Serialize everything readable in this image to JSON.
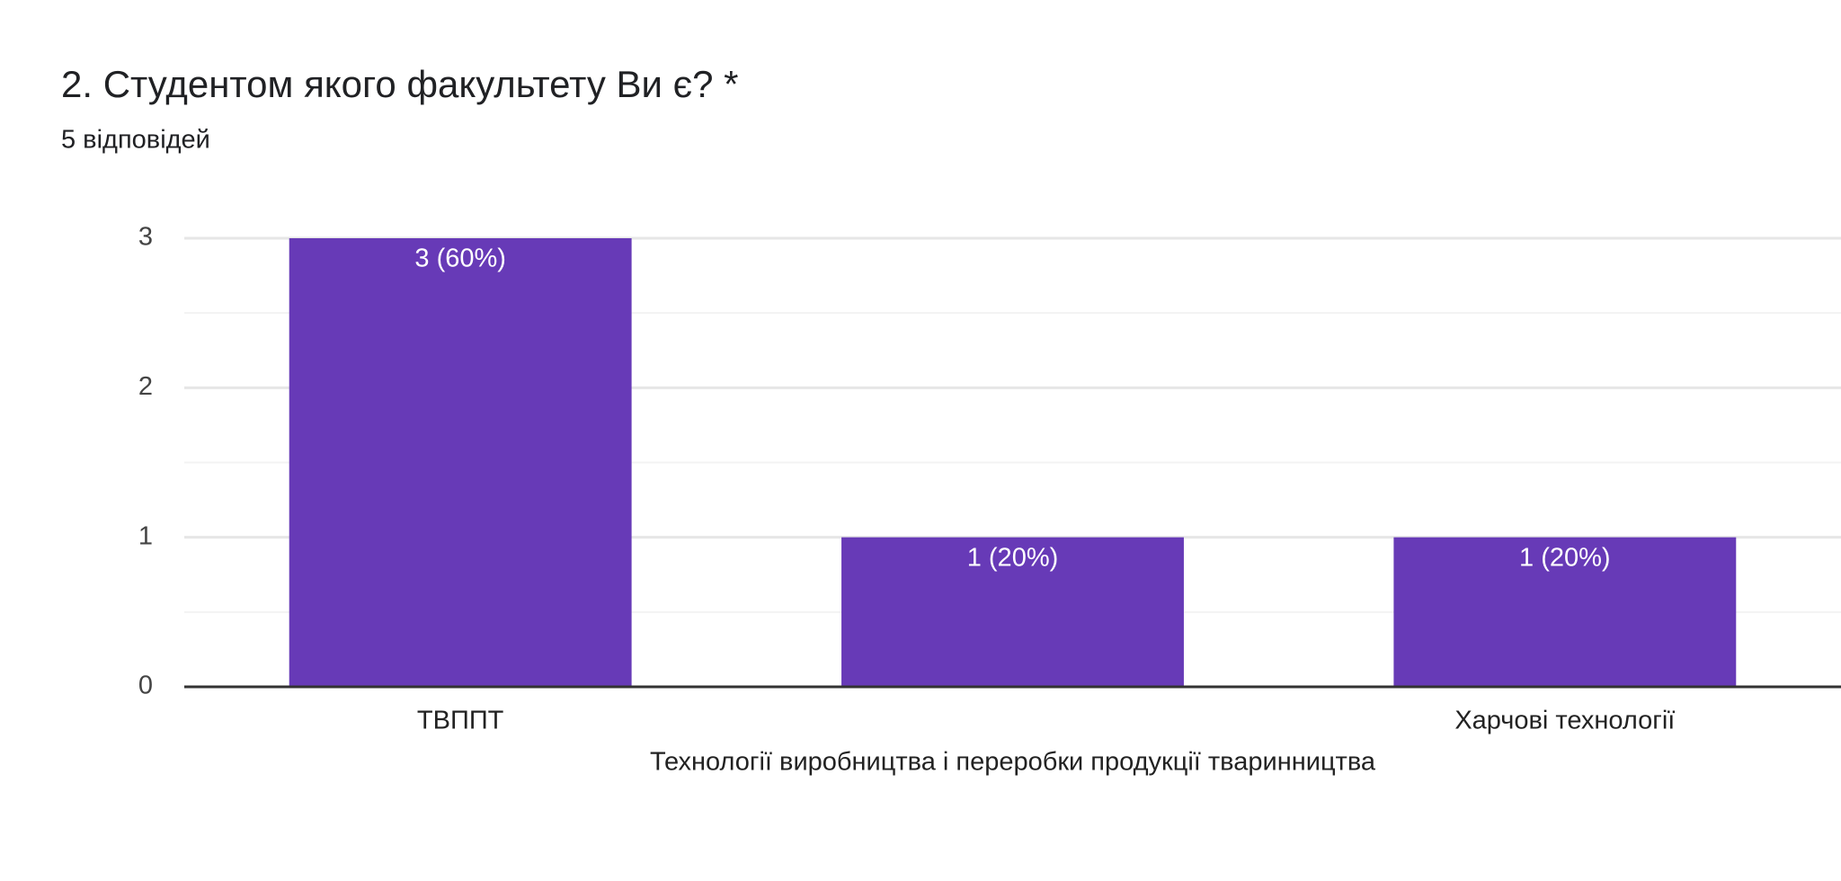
{
  "chart_data": {
    "type": "bar",
    "title": "2. Студентом якого факультету Ви є? *",
    "subtitle": "5 відповідей",
    "categories": [
      "ТВППТ",
      "Технології виробництва і переробки продукції тваринництва",
      "Харчові технології"
    ],
    "values": [
      3,
      1,
      1
    ],
    "value_labels": [
      "3 (60%)",
      "1 (20%)",
      "1 (20%)"
    ],
    "color": "#673ab7",
    "ylim": [
      0,
      3
    ],
    "yticks": [
      0,
      1,
      2,
      3
    ],
    "minor_yticks": [
      0.5,
      1.5,
      2.5
    ],
    "grid": true
  }
}
